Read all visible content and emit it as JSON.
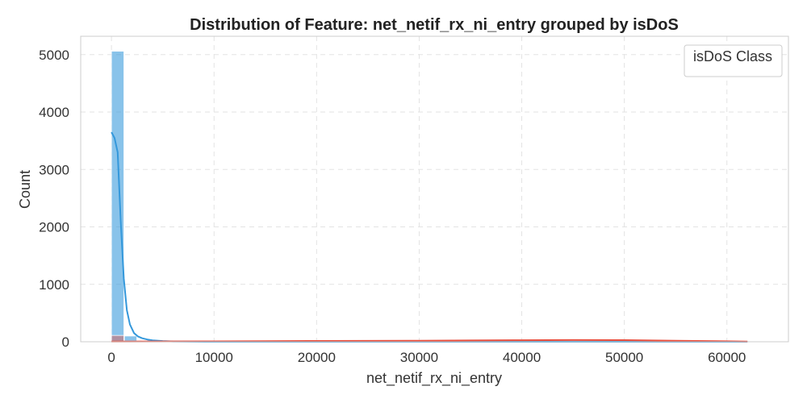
{
  "chart_data": {
    "type": "bar",
    "title": "Distribution of Feature: net_netif_rx_ni_entry grouped by isDoS",
    "xlabel": "net_netif_rx_ni_entry",
    "ylabel": "Count",
    "xlim": [
      -3000,
      66000
    ],
    "ylim": [
      0,
      5320
    ],
    "xticks": [
      0,
      10000,
      20000,
      30000,
      40000,
      50000,
      60000
    ],
    "yticks": [
      0,
      1000,
      2000,
      3000,
      4000,
      5000
    ],
    "grid": true,
    "legend": {
      "title": "isDoS Class",
      "placement": "top-right"
    },
    "bin_width": 1260,
    "series": [
      {
        "color": "#3498db",
        "bins": [
          {
            "x0": 0,
            "count": 5060
          },
          {
            "x0": 1260,
            "count": 100
          },
          {
            "x0": 2520,
            "count": 20
          },
          {
            "x0": 3780,
            "count": 8
          }
        ],
        "kde": [
          [
            0,
            3650
          ],
          [
            300,
            3550
          ],
          [
            600,
            3300
          ],
          [
            900,
            2100
          ],
          [
            1200,
            1100
          ],
          [
            1500,
            550
          ],
          [
            1800,
            300
          ],
          [
            2200,
            150
          ],
          [
            2600,
            90
          ],
          [
            3000,
            60
          ],
          [
            3500,
            40
          ],
          [
            4000,
            25
          ],
          [
            5000,
            12
          ],
          [
            6000,
            5
          ],
          [
            8000,
            2
          ],
          [
            10000,
            0
          ],
          [
            20000,
            0
          ],
          [
            40000,
            0
          ],
          [
            62000,
            0
          ]
        ]
      },
      {
        "color": "#e74c3c",
        "bins": [
          {
            "x0": 0,
            "count": 110
          },
          {
            "x0": 1260,
            "count": 12
          },
          {
            "x0": 2520,
            "count": 5
          }
        ],
        "kde": [
          [
            0,
            3
          ],
          [
            5000,
            5
          ],
          [
            10000,
            7
          ],
          [
            15000,
            10
          ],
          [
            20000,
            14
          ],
          [
            25000,
            16
          ],
          [
            30000,
            18
          ],
          [
            35000,
            22
          ],
          [
            40000,
            27
          ],
          [
            45000,
            30
          ],
          [
            50000,
            28
          ],
          [
            55000,
            18
          ],
          [
            60000,
            8
          ],
          [
            62000,
            3
          ]
        ]
      }
    ]
  }
}
